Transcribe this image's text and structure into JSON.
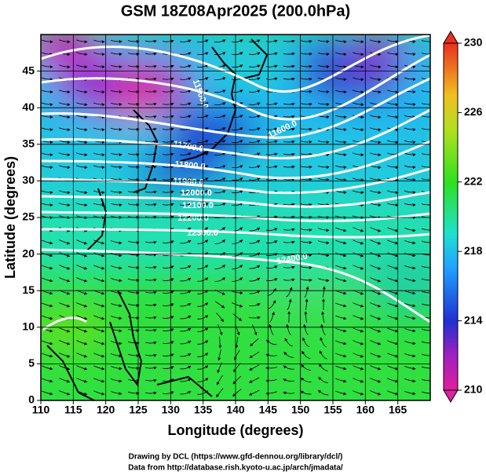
{
  "title": "GSM 18Z08Apr2025 (200.0hPa)",
  "x_axis": {
    "label": "Longitude (degrees)",
    "lim": [
      110,
      170
    ],
    "ticks": [
      110,
      115,
      120,
      125,
      130,
      135,
      140,
      145,
      150,
      155,
      160,
      165
    ]
  },
  "y_axis": {
    "label": "Latitude  (degrees)",
    "lim": [
      0,
      50
    ],
    "ticks": [
      0,
      5,
      10,
      15,
      20,
      25,
      30,
      35,
      40,
      45
    ]
  },
  "colorbar": {
    "lim": [
      210,
      230
    ],
    "ticks": [
      210,
      214,
      218,
      222,
      226,
      230
    ]
  },
  "contour_labels": [
    "11500.0",
    "11600.0",
    "11700.0",
    "11800.0",
    "11900.0",
    "12000.0",
    "12100.0",
    "12200.0",
    "12300.0",
    "12400.0"
  ],
  "credits": [
    "Drawing by DCL (https://www.gfd-dennou.org/library/dcl/)",
    "Data from http://database.rish.kyoto-u.ac.jp/arch/jmadata/"
  ]
}
